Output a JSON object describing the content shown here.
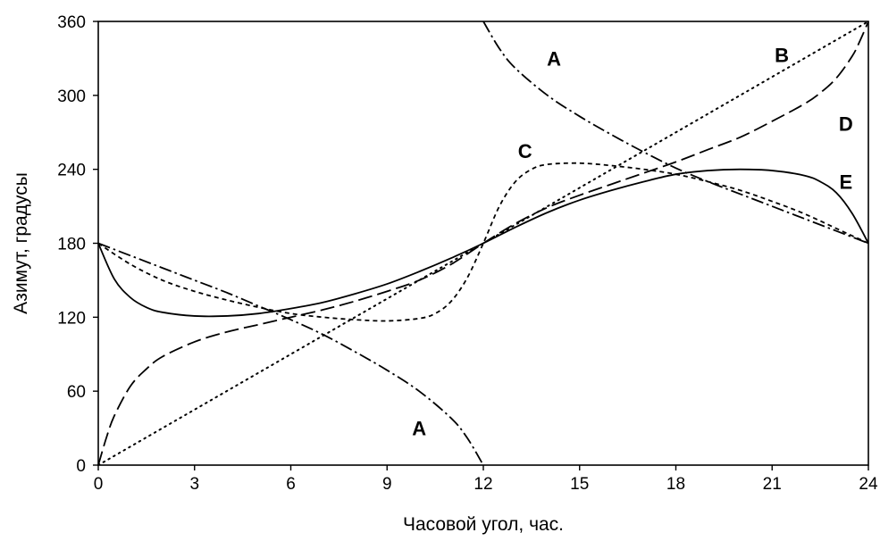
{
  "chart_data": {
    "type": "line",
    "xlabel": "Часовой угол, час.",
    "ylabel": "Азимут, градусы",
    "xlim": [
      0,
      24
    ],
    "ylim": [
      0,
      360
    ],
    "x_ticks": [
      "0",
      "3",
      "6",
      "9",
      "12",
      "15",
      "18",
      "21",
      "24"
    ],
    "y_ticks": [
      "0",
      "60",
      "120",
      "180",
      "240",
      "300",
      "360"
    ],
    "grid": false,
    "series": [
      {
        "name": "A",
        "style": "dashdot",
        "segments": [
          {
            "x": [
              0,
              1,
              2,
              3,
              4,
              5,
              6,
              7,
              8,
              9,
              10,
              11,
              11.5,
              12
            ],
            "y": [
              180,
              170,
              160,
              150,
              140,
              129,
              118,
              106,
              92,
              77,
              60,
              38,
              22,
              0
            ]
          },
          {
            "x": [
              12,
              12.5,
              13,
              14,
              15,
              16,
              17,
              18,
              19,
              20,
              21,
              22,
              23,
              24
            ],
            "y": [
              360,
              338,
              322,
              300,
              283,
              268,
              254,
              241,
              230,
              220,
              210,
              200,
              190,
              180
            ]
          }
        ]
      },
      {
        "name": "B",
        "style": "dotted",
        "segments": [
          {
            "x": [
              0,
              24
            ],
            "y": [
              0,
              360
            ]
          }
        ]
      },
      {
        "name": "C",
        "style": "short-dash",
        "segments": [
          {
            "x": [
              0,
              1,
              2,
              3,
              4,
              5,
              6,
              7,
              8,
              9,
              10,
              10.5,
              11,
              11.5,
              12,
              12.5,
              13,
              13.5,
              14,
              15,
              16,
              17,
              18,
              19,
              20,
              21,
              22,
              23,
              24
            ],
            "y": [
              180,
              163,
              150,
              141,
              134,
              128,
              123,
              120,
              118,
              117,
              119,
              123,
              133,
              152,
              180,
              210,
              230,
              240,
              244,
              245,
              243,
              240,
              236,
              230,
              223,
              214,
              204,
              192,
              180
            ]
          }
        ]
      },
      {
        "name": "D",
        "style": "long-dash",
        "segments": [
          {
            "x": [
              0,
              0.25,
              0.5,
              1,
              1.5,
              2,
              3,
              4,
              5,
              6,
              7,
              8,
              9,
              10,
              11,
              12,
              13,
              14,
              15,
              16,
              17,
              18,
              19,
              20,
              21,
              22,
              22.5,
              23,
              23.5,
              23.75,
              24
            ],
            "y": [
              0,
              22,
              40,
              64,
              78,
              88,
              100,
              108,
              114,
              120,
              126,
              133,
              141,
              150,
              163,
              180,
              196,
              209,
              219,
              228,
              237,
              246,
              256,
              266,
              279,
              293,
              302,
              314,
              332,
              345,
              360
            ]
          }
        ]
      },
      {
        "name": "E",
        "style": "solid",
        "segments": [
          {
            "x": [
              0,
              0.5,
              1,
              1.5,
              2,
              3,
              4,
              5,
              6,
              7,
              8,
              9,
              10,
              11,
              12,
              13,
              14,
              15,
              16,
              17,
              18,
              19,
              20,
              21,
              22,
              22.5,
              23,
              23.5,
              24
            ],
            "y": [
              180,
              151,
              136,
              128,
              124,
              121,
              121,
              123,
              127,
              132,
              139,
              147,
              157,
              168,
              180,
              193,
              205,
              215,
              223,
              230,
              236,
              239,
              240,
              239,
              235,
              230,
              221,
              204,
              180
            ]
          }
        ]
      }
    ],
    "annotations": [
      {
        "text": "A",
        "x": 14.2,
        "y": 330
      },
      {
        "text": "A",
        "x": 10.0,
        "y": 30
      },
      {
        "text": "B",
        "x": 21.3,
        "y": 333
      },
      {
        "text": "C",
        "x": 13.3,
        "y": 255
      },
      {
        "text": "D",
        "x": 23.3,
        "y": 277
      },
      {
        "text": "E",
        "x": 23.3,
        "y": 230
      }
    ]
  }
}
